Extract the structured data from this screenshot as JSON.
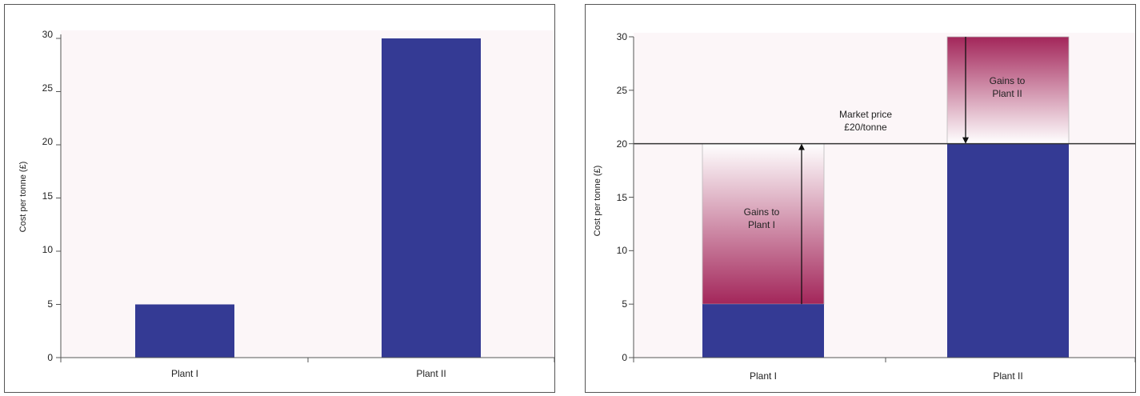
{
  "colors": {
    "plot_bg": "#fcf6f8",
    "bar": "#343a94",
    "gain_dark": "#a3265a",
    "gain_light": "#ffffff",
    "axis": "#555555",
    "market_line": "#333333"
  },
  "chart_data": [
    {
      "type": "bar",
      "categories": [
        "Plant I",
        "Plant II"
      ],
      "values": [
        5,
        30
      ],
      "ylabel": "Cost per tonne (£)",
      "ylim": [
        0,
        30
      ],
      "yticks": [
        "0",
        "5",
        "10",
        "15",
        "20",
        "25",
        "30"
      ],
      "grid": false
    },
    {
      "type": "bar",
      "categories": [
        "Plant I",
        "Plant II"
      ],
      "values": [
        5,
        30
      ],
      "ylabel": "Cost per tonne (£)",
      "ylim": [
        0,
        30
      ],
      "yticks": [
        "0",
        "5",
        "10",
        "15",
        "20",
        "25",
        "30"
      ],
      "grid": false,
      "market_price": 20,
      "annotations": {
        "market_line_1": "Market price",
        "market_line_2": "£20/tonne",
        "gain_plant1_line_1": "Gains to",
        "gain_plant1_line_2": "Plant I",
        "gain_plant2_line_1": "Gains to",
        "gain_plant2_line_2": "Plant II"
      }
    }
  ]
}
